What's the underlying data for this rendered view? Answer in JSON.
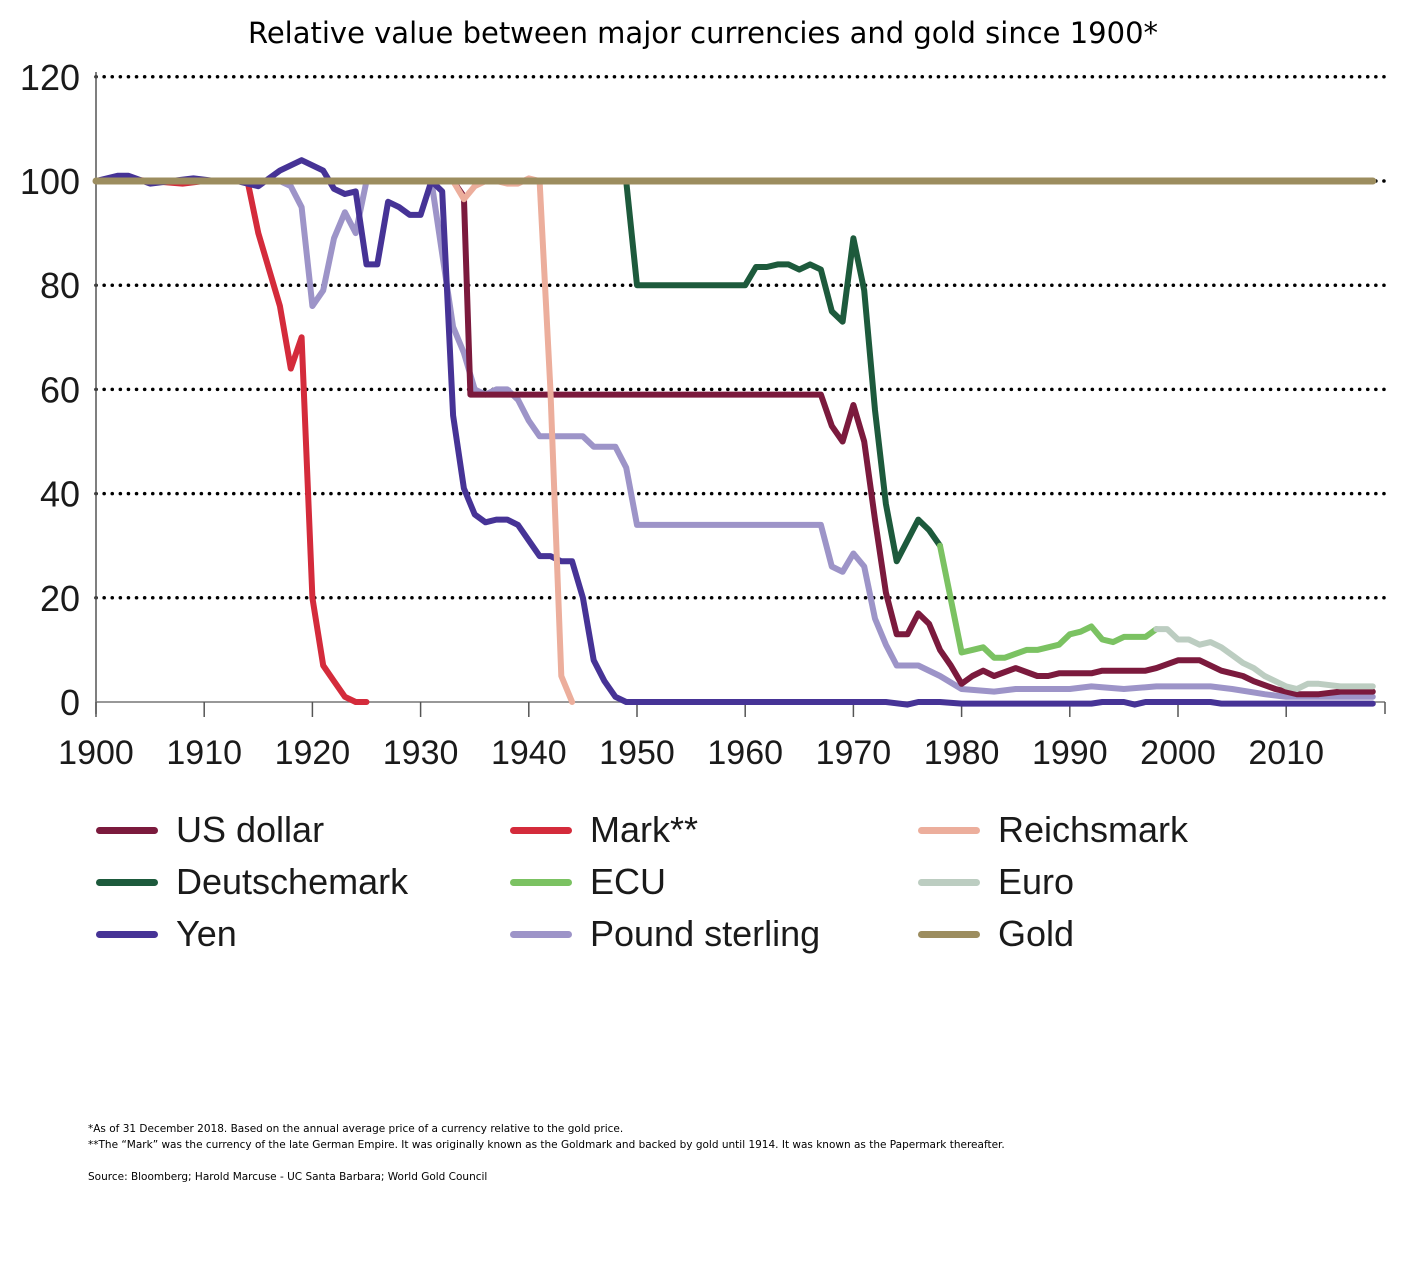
{
  "chart_data": {
    "type": "line",
    "title": "Relative value between major currencies and gold since 1900*",
    "xlabel": "",
    "ylabel": "",
    "xlim": [
      1900,
      2019
    ],
    "ylim": [
      0,
      120
    ],
    "x_ticks": [
      "1900",
      "1910",
      "1920",
      "1930",
      "1940",
      "1950",
      "1960",
      "1970",
      "1980",
      "1990",
      "2000",
      "2010"
    ],
    "y_ticks": [
      "0",
      "20",
      "40",
      "60",
      "80",
      "100",
      "120"
    ],
    "grid": "horizontal dotted",
    "legend_position": "bottom",
    "series": [
      {
        "name": "Gold",
        "color": "#9c8d5f",
        "points": [
          [
            1900,
            100
          ],
          [
            2018,
            100
          ]
        ]
      },
      {
        "name": "Mark**",
        "color": "#d42b3b",
        "points": [
          [
            1900,
            100
          ],
          [
            1902,
            100.5
          ],
          [
            1905,
            100
          ],
          [
            1908,
            99.5
          ],
          [
            1910,
            100
          ],
          [
            1914,
            100
          ],
          [
            1915,
            90
          ],
          [
            1916,
            83
          ],
          [
            1917,
            76
          ],
          [
            1918,
            64
          ],
          [
            1919,
            70
          ],
          [
            1920,
            20
          ],
          [
            1921,
            7
          ],
          [
            1922,
            4
          ],
          [
            1923,
            1
          ],
          [
            1924,
            0
          ],
          [
            1925,
            0
          ]
        ]
      },
      {
        "name": "Pound sterling",
        "color": "#9d94c8",
        "points": [
          [
            1900,
            100
          ],
          [
            1914,
            100
          ],
          [
            1917,
            100
          ],
          [
            1918,
            99
          ],
          [
            1919,
            95
          ],
          [
            1920,
            76
          ],
          [
            1921,
            79
          ],
          [
            1922,
            89
          ],
          [
            1923,
            94
          ],
          [
            1924,
            90
          ],
          [
            1925,
            100
          ],
          [
            1931,
            100
          ],
          [
            1932,
            86
          ],
          [
            1933,
            72
          ],
          [
            1934,
            67
          ],
          [
            1935,
            60
          ],
          [
            1936,
            59
          ],
          [
            1937,
            60
          ],
          [
            1938,
            60
          ],
          [
            1939,
            58
          ],
          [
            1940,
            54
          ],
          [
            1941,
            51
          ],
          [
            1943,
            51
          ],
          [
            1945,
            51
          ],
          [
            1946,
            49
          ],
          [
            1948,
            49
          ],
          [
            1949,
            45
          ],
          [
            1950,
            34
          ],
          [
            1967,
            34
          ],
          [
            1968,
            26
          ],
          [
            1969,
            25
          ],
          [
            1970,
            28.5
          ],
          [
            1971,
            26
          ],
          [
            1972,
            16
          ],
          [
            1973,
            11
          ],
          [
            1974,
            7
          ],
          [
            1976,
            7
          ],
          [
            1978,
            5
          ],
          [
            1980,
            2.5
          ],
          [
            1983,
            2
          ],
          [
            1985,
            2.5
          ],
          [
            1990,
            2.5
          ],
          [
            1992,
            3
          ],
          [
            1995,
            2.5
          ],
          [
            1998,
            3
          ],
          [
            2003,
            3
          ],
          [
            2005,
            2.5
          ],
          [
            2008,
            1.5
          ],
          [
            2010,
            1
          ],
          [
            2018,
            1
          ]
        ]
      },
      {
        "name": "Yen",
        "color": "#463396",
        "points": [
          [
            1900,
            100
          ],
          [
            1902,
            101
          ],
          [
            1903,
            101
          ],
          [
            1905,
            99.5
          ],
          [
            1907,
            100
          ],
          [
            1909,
            100.5
          ],
          [
            1911,
            100
          ],
          [
            1913,
            100
          ],
          [
            1915,
            99
          ],
          [
            1917,
            102
          ],
          [
            1919,
            104
          ],
          [
            1921,
            102
          ],
          [
            1922,
            98.5
          ],
          [
            1923,
            97.5
          ],
          [
            1924,
            98
          ],
          [
            1925,
            84
          ],
          [
            1926,
            84
          ],
          [
            1927,
            96
          ],
          [
            1928,
            95
          ],
          [
            1929,
            93.5
          ],
          [
            1930,
            93.5
          ],
          [
            1931,
            100
          ],
          [
            1932,
            98
          ],
          [
            1933,
            55
          ],
          [
            1934,
            41
          ],
          [
            1935,
            36
          ],
          [
            1936,
            34.5
          ],
          [
            1937,
            35
          ],
          [
            1938,
            35
          ],
          [
            1939,
            34
          ],
          [
            1940,
            31
          ],
          [
            1941,
            28
          ],
          [
            1942,
            28
          ],
          [
            1943,
            27
          ],
          [
            1944,
            27
          ],
          [
            1945,
            20
          ],
          [
            1946,
            8
          ],
          [
            1947,
            4
          ],
          [
            1948,
            1
          ],
          [
            1949,
            0
          ],
          [
            1973,
            0
          ],
          [
            1975,
            -0.5
          ],
          [
            1976,
            0
          ],
          [
            1978,
            0
          ],
          [
            1980,
            -0.3
          ],
          [
            1992,
            -0.3
          ],
          [
            1993,
            0
          ],
          [
            1995,
            0
          ],
          [
            1996,
            -0.5
          ],
          [
            1997,
            0
          ],
          [
            2003,
            0
          ],
          [
            2004,
            -0.3
          ],
          [
            2018,
            -0.3
          ]
        ]
      },
      {
        "name": "US dollar",
        "color": "#7b1a3d",
        "points": [
          [
            1900,
            100
          ],
          [
            1933,
            100
          ],
          [
            1934,
            97
          ],
          [
            1934.6,
            59
          ],
          [
            1967,
            59
          ],
          [
            1968,
            53
          ],
          [
            1969,
            50
          ],
          [
            1970,
            57
          ],
          [
            1971,
            50
          ],
          [
            1972,
            35
          ],
          [
            1973,
            21
          ],
          [
            1974,
            13
          ],
          [
            1975,
            13
          ],
          [
            1976,
            17
          ],
          [
            1977,
            15
          ],
          [
            1978,
            10
          ],
          [
            1979,
            7
          ],
          [
            1980,
            3.5
          ],
          [
            1981,
            5
          ],
          [
            1982,
            6
          ],
          [
            1983,
            5
          ],
          [
            1985,
            6.5
          ],
          [
            1987,
            5
          ],
          [
            1988,
            5
          ],
          [
            1989,
            5.5
          ],
          [
            1992,
            5.5
          ],
          [
            1993,
            6
          ],
          [
            1995,
            6
          ],
          [
            1997,
            6
          ],
          [
            1998,
            6.5
          ],
          [
            2000,
            8
          ],
          [
            2002,
            8
          ],
          [
            2004,
            6
          ],
          [
            2006,
            5
          ],
          [
            2007,
            4
          ],
          [
            2009,
            2.5
          ],
          [
            2011,
            1.5
          ],
          [
            2013,
            1.5
          ],
          [
            2015,
            2
          ],
          [
            2018,
            2
          ]
        ]
      },
      {
        "name": "Reichsmark",
        "color": "#ecae9c",
        "points": [
          [
            1924,
            100
          ],
          [
            1932,
            100
          ],
          [
            1933,
            100
          ],
          [
            1934,
            96.5
          ],
          [
            1935,
            99
          ],
          [
            1936,
            100
          ],
          [
            1937,
            100
          ],
          [
            1938,
            99.5
          ],
          [
            1939,
            99.5
          ],
          [
            1940,
            100.5
          ],
          [
            1941,
            100
          ],
          [
            1942,
            60
          ],
          [
            1943,
            5
          ],
          [
            1944,
            0
          ]
        ]
      },
      {
        "name": "Deutschemark",
        "color": "#1d5a3c",
        "points": [
          [
            1948,
            100
          ],
          [
            1949,
            100
          ],
          [
            1950,
            80
          ],
          [
            1958,
            80
          ],
          [
            1959,
            80
          ],
          [
            1960,
            80
          ],
          [
            1961,
            83.5
          ],
          [
            1962,
            83.5
          ],
          [
            1963,
            84
          ],
          [
            1964,
            84
          ],
          [
            1965,
            83
          ],
          [
            1966,
            84
          ],
          [
            1967,
            83
          ],
          [
            1968,
            75
          ],
          [
            1969,
            73
          ],
          [
            1970,
            89
          ],
          [
            1971,
            79
          ],
          [
            1972,
            56
          ],
          [
            1973,
            38
          ],
          [
            1974,
            27
          ],
          [
            1976,
            35
          ],
          [
            1977,
            33
          ],
          [
            1978,
            30
          ]
        ]
      },
      {
        "name": "ECU",
        "color": "#7bc262",
        "points": [
          [
            1978,
            30
          ],
          [
            1980,
            9.5
          ],
          [
            1981,
            10
          ],
          [
            1982,
            10.5
          ],
          [
            1983,
            8.5
          ],
          [
            1984,
            8.5
          ],
          [
            1986,
            10
          ],
          [
            1987,
            10
          ],
          [
            1988,
            10.5
          ],
          [
            1989,
            11
          ],
          [
            1990,
            13
          ],
          [
            1991,
            13.5
          ],
          [
            1992,
            14.5
          ],
          [
            1993,
            12
          ],
          [
            1994,
            11.5
          ],
          [
            1995,
            12.5
          ],
          [
            1997,
            12.5
          ],
          [
            1998,
            14
          ]
        ]
      },
      {
        "name": "Euro",
        "color": "#bccdc1",
        "points": [
          [
            1998,
            14
          ],
          [
            1999,
            14
          ],
          [
            2000,
            12
          ],
          [
            2001,
            12
          ],
          [
            2002,
            11
          ],
          [
            2003,
            11.5
          ],
          [
            2004,
            10.5
          ],
          [
            2005,
            9
          ],
          [
            2006,
            7.5
          ],
          [
            2007,
            6.5
          ],
          [
            2008,
            5
          ],
          [
            2009,
            4
          ],
          [
            2010,
            3
          ],
          [
            2011,
            2.5
          ],
          [
            2012,
            3.5
          ],
          [
            2013,
            3.5
          ],
          [
            2015,
            3
          ],
          [
            2018,
            3
          ]
        ]
      }
    ]
  },
  "legend": [
    {
      "label": "US dollar",
      "color": "#7b1a3d"
    },
    {
      "label": "Mark**",
      "color": "#d42b3b"
    },
    {
      "label": "Reichsmark",
      "color": "#ecae9c"
    },
    {
      "label": "Deutschemark",
      "color": "#1d5a3c"
    },
    {
      "label": "ECU",
      "color": "#7bc262"
    },
    {
      "label": "Euro",
      "color": "#bccdc1"
    },
    {
      "label": "Yen",
      "color": "#463396"
    },
    {
      "label": "Pound sterling",
      "color": "#9d94c8"
    },
    {
      "label": "Gold",
      "color": "#9c8d5f"
    }
  ],
  "notes": {
    "note1": "*As of 31 December 2018. Based on the annual average price of a currency relative to the gold price.",
    "note2": "**The “Mark” was the currency of the late German Empire. It was originally known as the Goldmark and backed by gold until 1914. It was known as the Papermark thereafter.",
    "source": "Source: Bloomberg; Harold Marcuse - UC Santa Barbara; World Gold Council"
  }
}
